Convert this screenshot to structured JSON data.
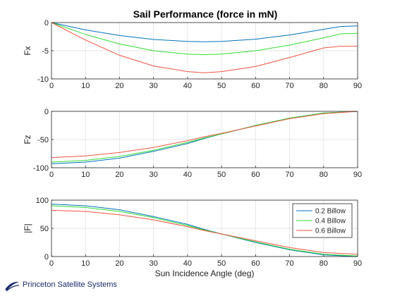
{
  "figure_title": "Sail Performance (force in mN)",
  "footer_logo_text": "Princeton Satellite Systems",
  "colors": {
    "series": [
      "#0072BD",
      "#33dd33",
      "#ee5544"
    ],
    "logo": "#1a2a6c"
  },
  "chart_data": [
    {
      "type": "line",
      "ylabel": "Fx",
      "xlabel": "",
      "xlim": [
        0,
        90
      ],
      "ylim": [
        -10,
        0
      ],
      "xticks": [
        "0",
        "10",
        "20",
        "30",
        "40",
        "50",
        "60",
        "70",
        "80",
        "90"
      ],
      "yticks": [
        "-10",
        "-5",
        "0"
      ],
      "grid": true,
      "x": [
        0,
        10,
        20,
        30,
        40,
        45,
        50,
        60,
        70,
        80,
        85,
        90
      ],
      "series": [
        {
          "name": "0.2 Billow",
          "values": [
            0,
            -1.3,
            -2.3,
            -3.0,
            -3.35,
            -3.4,
            -3.35,
            -2.95,
            -2.2,
            -1.2,
            -0.7,
            -0.6
          ]
        },
        {
          "name": "0.4 Billow",
          "values": [
            0,
            -2.1,
            -3.8,
            -5.0,
            -5.6,
            -5.7,
            -5.6,
            -5.0,
            -4.0,
            -2.7,
            -2.0,
            -1.9
          ]
        },
        {
          "name": "0.6 Billow",
          "values": [
            0,
            -3.1,
            -5.8,
            -7.7,
            -8.7,
            -8.9,
            -8.7,
            -7.8,
            -6.2,
            -4.5,
            -4.2,
            -4.2
          ]
        }
      ]
    },
    {
      "type": "line",
      "ylabel": "Fz",
      "xlabel": "",
      "xlim": [
        0,
        90
      ],
      "ylim": [
        -100,
        0
      ],
      "xticks": [
        "0",
        "10",
        "20",
        "30",
        "40",
        "50",
        "60",
        "70",
        "80",
        "90"
      ],
      "yticks": [
        "-100",
        "-50",
        "0"
      ],
      "grid": true,
      "x": [
        0,
        10,
        20,
        30,
        40,
        45,
        50,
        60,
        70,
        80,
        90
      ],
      "series": [
        {
          "name": "0.2 Billow",
          "values": [
            -93,
            -90,
            -83,
            -71,
            -57,
            -48,
            -40,
            -25,
            -12,
            -3,
            0
          ]
        },
        {
          "name": "0.4 Billow",
          "values": [
            -90,
            -87,
            -80,
            -69,
            -55,
            -47,
            -40,
            -25,
            -12,
            -3,
            0
          ]
        },
        {
          "name": "0.6 Billow",
          "values": [
            -82,
            -79,
            -73,
            -64,
            -52,
            -45,
            -39,
            -26,
            -13,
            -4,
            0
          ]
        }
      ]
    },
    {
      "type": "line",
      "ylabel": "|F|",
      "xlabel": "Sun Incidence Angle (deg)",
      "xlim": [
        0,
        90
      ],
      "ylim": [
        0,
        100
      ],
      "xticks": [
        "0",
        "10",
        "20",
        "30",
        "40",
        "50",
        "60",
        "70",
        "80",
        "90"
      ],
      "yticks": [
        "0",
        "50",
        "100"
      ],
      "grid": true,
      "legend": "top-right",
      "x": [
        0,
        10,
        20,
        30,
        40,
        45,
        50,
        60,
        70,
        80,
        90
      ],
      "series": [
        {
          "name": "0.2 Billow",
          "values": [
            93,
            90,
            83,
            71,
            57,
            48,
            40,
            25,
            12,
            3,
            0
          ]
        },
        {
          "name": "0.4 Billow",
          "values": [
            90,
            87,
            80,
            69,
            55,
            47,
            40,
            26,
            13,
            4,
            1
          ]
        },
        {
          "name": "0.6 Billow",
          "values": [
            82,
            80,
            74,
            65,
            53,
            46,
            40,
            28,
            16,
            7,
            4
          ]
        }
      ]
    }
  ]
}
